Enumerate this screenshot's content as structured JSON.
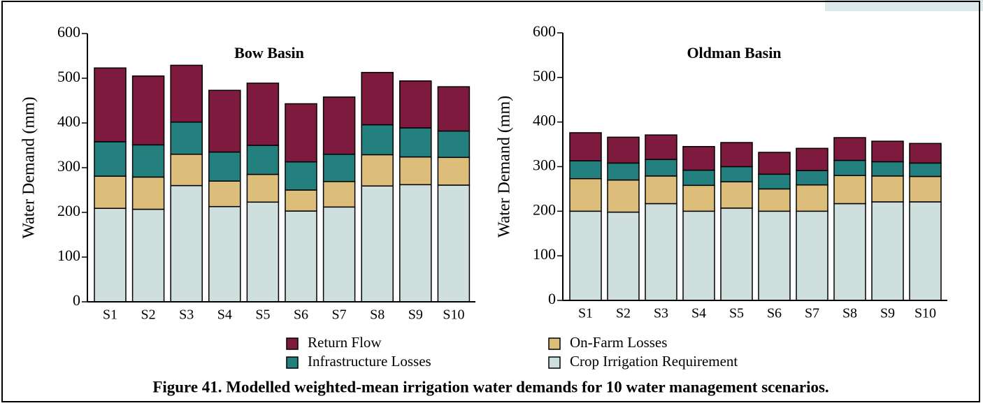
{
  "chart_data": [
    {
      "type": "stacked-bar",
      "title": "Bow Basin",
      "y_label": "Water Demand (mm)",
      "categories": [
        "S1",
        "S2",
        "S3",
        "S4",
        "S5",
        "S6",
        "S7",
        "S8",
        "S9",
        "S10"
      ],
      "ylim": [
        0,
        600
      ],
      "yticks": [
        0,
        100,
        200,
        300,
        400,
        500,
        600
      ],
      "series": [
        {
          "name": "Crop Irrigation Requirement",
          "color": "#cfdfdd",
          "values": [
            209,
            207,
            260,
            213,
            223,
            203,
            212,
            259,
            262,
            261
          ]
        },
        {
          "name": "On-Farm Losses",
          "color": "#dcbd7a",
          "values": [
            72,
            72,
            70,
            57,
            62,
            47,
            57,
            70,
            62,
            62
          ]
        },
        {
          "name": "Infrastructure Losses",
          "color": "#23807f",
          "values": [
            77,
            72,
            72,
            65,
            65,
            63,
            61,
            67,
            65,
            59
          ]
        },
        {
          "name": "Return Flow",
          "color": "#7f1a3f",
          "values": [
            165,
            154,
            127,
            138,
            139,
            130,
            128,
            117,
            105,
            99
          ]
        }
      ]
    },
    {
      "type": "stacked-bar",
      "title": "Oldman Basin",
      "y_label": "Water Demand (mm)",
      "categories": [
        "S1",
        "S2",
        "S3",
        "S4",
        "S5",
        "S6",
        "S7",
        "S8",
        "S9",
        "S10"
      ],
      "ylim": [
        0,
        600
      ],
      "yticks": [
        0,
        100,
        200,
        300,
        400,
        500,
        600
      ],
      "series": [
        {
          "color": "#cfdfdd",
          "values": [
            200,
            198,
            217,
            200,
            207,
            200,
            200,
            217,
            221,
            221
          ]
        },
        {
          "color": "#dcbd7a",
          "values": [
            73,
            72,
            62,
            58,
            59,
            50,
            59,
            63,
            58,
            57
          ]
        },
        {
          "color": "#23807f",
          "values": [
            40,
            38,
            37,
            34,
            34,
            33,
            32,
            34,
            32,
            30
          ]
        },
        {
          "color": "#7f1a3f",
          "values": [
            63,
            58,
            55,
            53,
            54,
            49,
            50,
            51,
            46,
            44
          ]
        }
      ]
    }
  ],
  "caption": "Figure 41. Modelled weighted-mean irrigation water demands for 10 water management scenarios."
}
